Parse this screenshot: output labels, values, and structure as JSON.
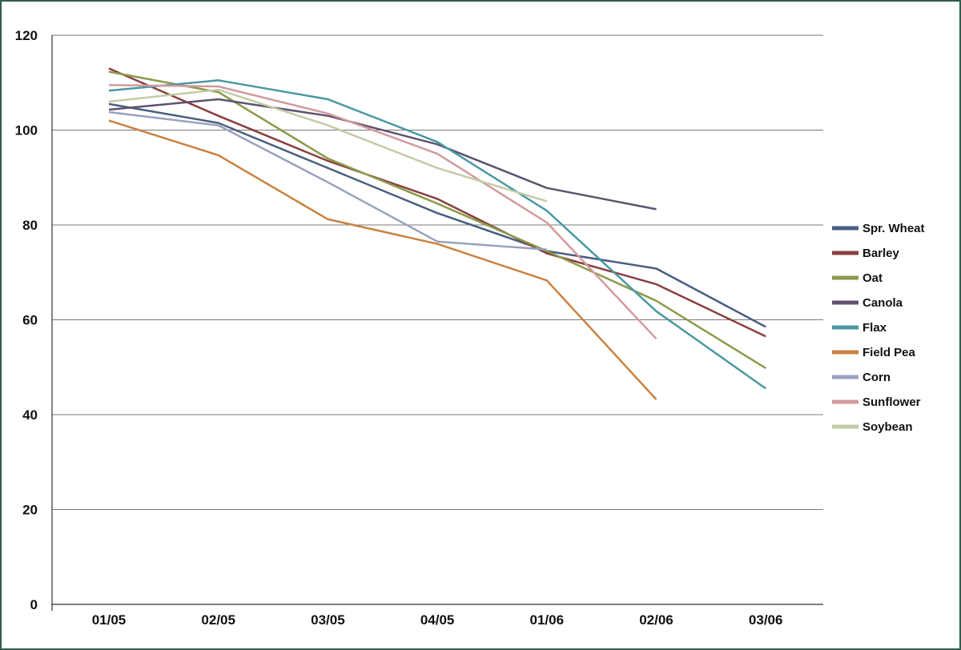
{
  "chart_data": {
    "type": "line",
    "title": "",
    "xlabel": "",
    "ylabel": "",
    "ylim": [
      0,
      120
    ],
    "y_ticks": [
      "0",
      "20",
      "40",
      "60",
      "80",
      "100",
      "120"
    ],
    "categories": [
      "01/05",
      "02/05",
      "03/05",
      "04/05",
      "01/06",
      "02/06",
      "03/06"
    ],
    "grid": "horizontal",
    "legend_position": "right",
    "series": [
      {
        "name": "Spr. Wheat",
        "color": "#4a5e80",
        "values": [
          105.5,
          101.5,
          92,
          82.5,
          74.5,
          70.8,
          58.5
        ]
      },
      {
        "name": "Barley",
        "color": "#8b3f3f",
        "values": [
          113,
          103,
          93.5,
          85.5,
          74,
          67.5,
          56.5
        ]
      },
      {
        "name": "Oat",
        "color": "#8c9a4a",
        "values": [
          112.3,
          108,
          94,
          84.5,
          74.5,
          64,
          49.8
        ]
      },
      {
        "name": "Canola",
        "color": "#5f5270",
        "values": [
          104.3,
          106.5,
          103,
          97,
          87.8,
          83.3,
          null
        ]
      },
      {
        "name": "Flax",
        "color": "#4a98a3",
        "values": [
          108.3,
          110.5,
          106.5,
          97.5,
          83,
          61.8,
          45.5
        ]
      },
      {
        "name": "Field Pea",
        "color": "#c98240",
        "values": [
          102,
          94.7,
          81.2,
          76,
          68.3,
          43.2,
          null
        ]
      },
      {
        "name": "Corn",
        "color": "#98a2bc",
        "values": [
          103.8,
          101,
          89,
          76.5,
          74.8,
          null,
          null
        ]
      },
      {
        "name": "Sunflower",
        "color": "#d39a9d",
        "values": [
          109.5,
          109.2,
          103.5,
          95,
          80.5,
          56,
          null
        ]
      },
      {
        "name": "Soybean",
        "color": "#c1cca6",
        "values": [
          106,
          108.5,
          101,
          92,
          85,
          null,
          null
        ]
      }
    ]
  }
}
